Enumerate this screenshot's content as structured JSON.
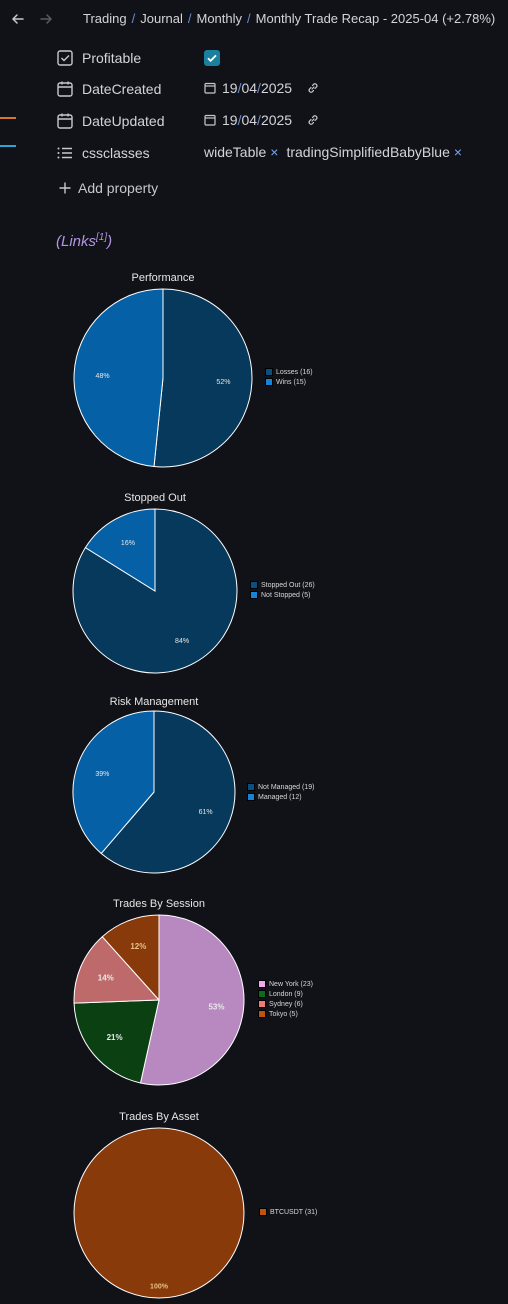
{
  "breadcrumb": {
    "items": [
      "Trading",
      "Journal",
      "Monthly",
      "Monthly Trade Recap - 2025-04 (+2.78%)"
    ]
  },
  "properties": {
    "profitable": {
      "name": "Profitable",
      "checked": true
    },
    "date_created": {
      "name": "DateCreated",
      "day": "19",
      "month": "04",
      "year": "2025"
    },
    "date_updated": {
      "name": "DateUpdated",
      "day": "19",
      "month": "04",
      "year": "2025"
    },
    "cssclasses": {
      "name": "cssclasses",
      "tags": [
        "wideTable",
        "tradingSimplifiedBabyBlue"
      ]
    },
    "add_property": "Add property"
  },
  "links": {
    "label": "(Links",
    "sup": "[1]",
    "close": ")"
  },
  "colors": {
    "accent_orange": "#d9762a",
    "accent_blue": "#2aa5d6",
    "checkbox": "#1b7f9e"
  },
  "chart_data": [
    {
      "type": "pie",
      "title": "Performance",
      "labels": [
        "Losses (16)",
        "Wins (15)"
      ],
      "values": [
        16,
        15
      ],
      "percent_labels": [
        "52%",
        "48%"
      ],
      "colors": [
        "#06395b",
        "#0660a6"
      ],
      "swatch_colors": [
        "#0a4f7d",
        "#1583d6"
      ]
    },
    {
      "type": "pie",
      "title": "Stopped Out",
      "labels": [
        "Stopped Out (26)",
        "Not Stopped (5)"
      ],
      "values": [
        26,
        5
      ],
      "percent_labels": [
        "84%",
        "16%"
      ],
      "colors": [
        "#06395b",
        "#0660a6"
      ],
      "swatch_colors": [
        "#0a4f7d",
        "#1583d6"
      ]
    },
    {
      "type": "pie",
      "title": "Risk Management",
      "labels": [
        "Not Managed (19)",
        "Managed (12)"
      ],
      "values": [
        19,
        12
      ],
      "percent_labels": [
        "61%",
        "39%"
      ],
      "colors": [
        "#06395b",
        "#0660a6"
      ],
      "swatch_colors": [
        "#0a4f7d",
        "#1583d6"
      ]
    },
    {
      "type": "pie",
      "title": "Trades By Session",
      "labels": [
        "New York (23)",
        "London (9)",
        "Sydney (6)",
        "Tokyo (5)"
      ],
      "values": [
        23,
        9,
        6,
        5
      ],
      "percent_labels": [
        "53%",
        "21%",
        "14%",
        "12%"
      ],
      "colors": [
        "#b888c0",
        "#0a4012",
        "#bf6a6a",
        "#883a0a"
      ],
      "swatch_colors": [
        "#f3a8ee",
        "#0f6a1d",
        "#f07a7a",
        "#c2530f"
      ]
    },
    {
      "type": "pie",
      "title": "Trades By Asset",
      "labels": [
        "BTCUSDT (31)"
      ],
      "values": [
        31
      ],
      "percent_labels": [
        "100%"
      ],
      "colors": [
        "#883a0a"
      ],
      "swatch_colors": [
        "#c2530f"
      ],
      "label_color": "#e6c28a"
    }
  ]
}
